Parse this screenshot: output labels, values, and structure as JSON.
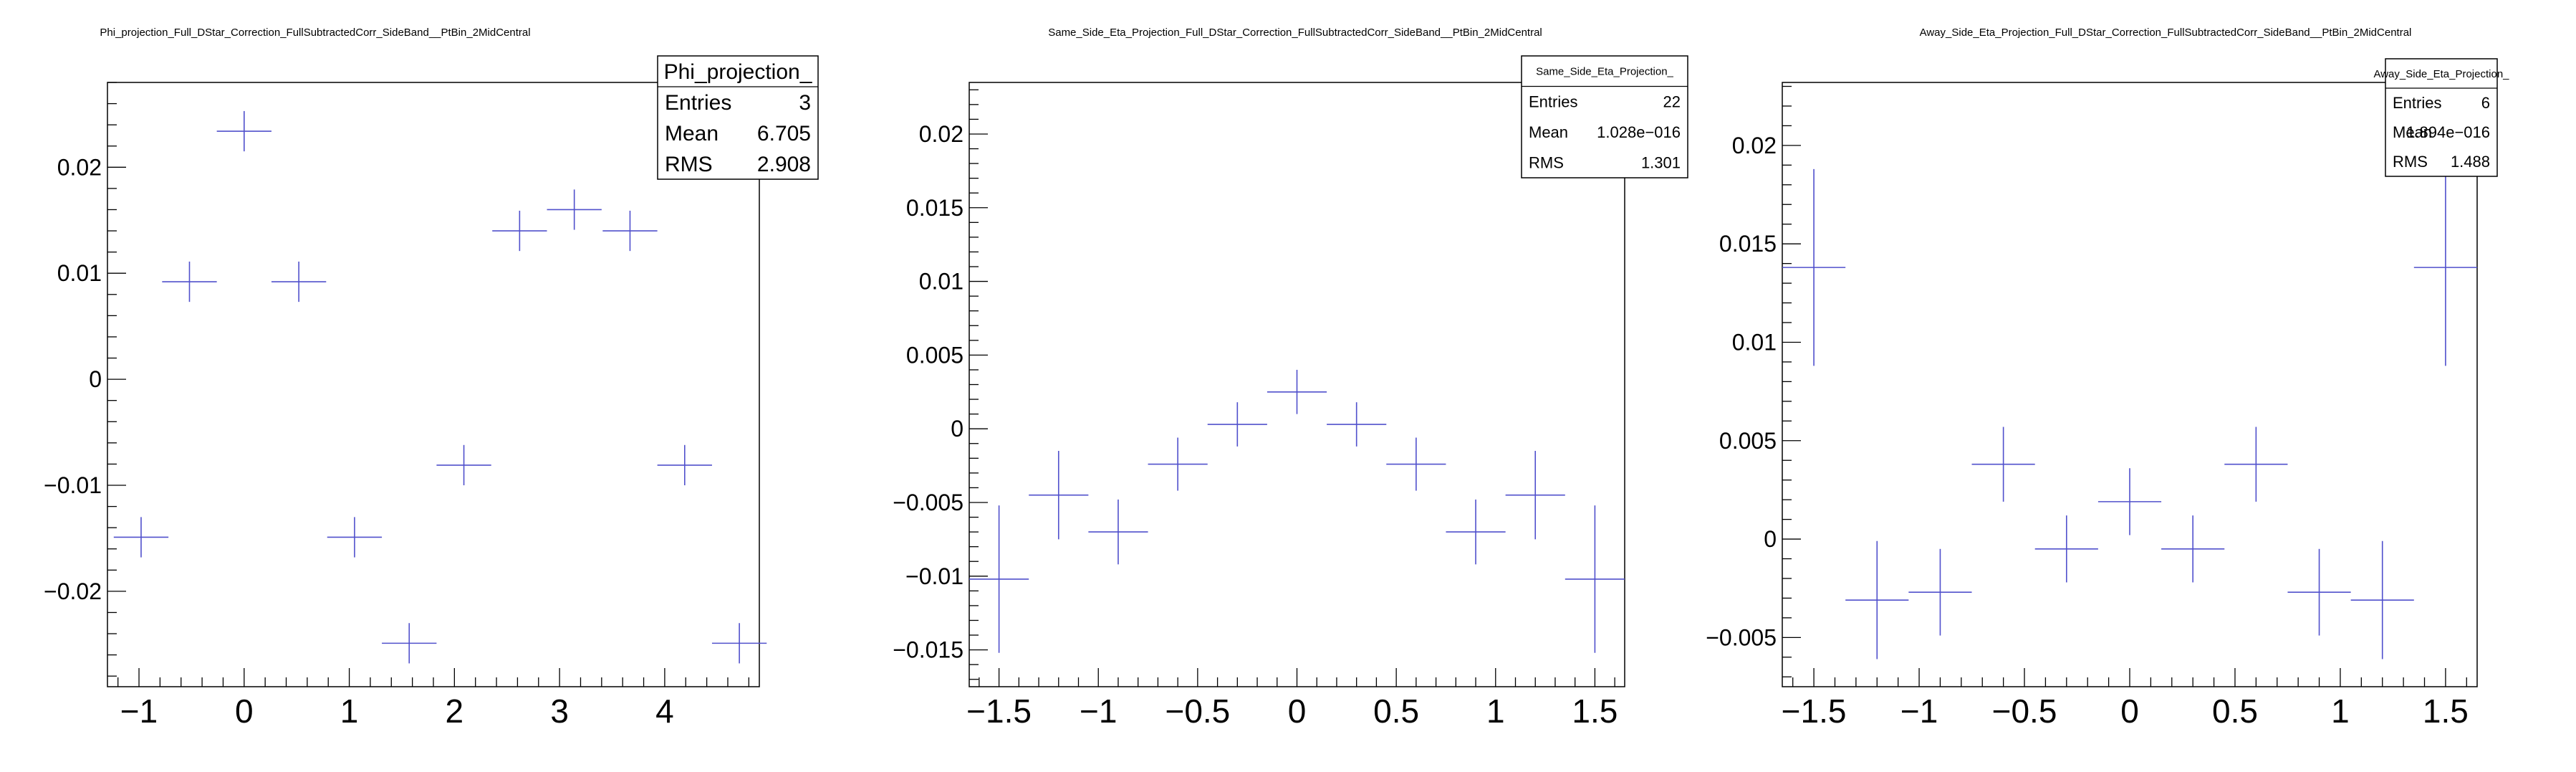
{
  "chart_data": [
    {
      "type": "scatter",
      "title": "Phi_projection_Full_DStar_Correction_FullSubtractedCorr_SideBand__PtBin_2MidCentral",
      "xlabel": "",
      "ylabel": "",
      "xlim": [
        -1.3,
        4.9
      ],
      "ylim": [
        -0.029,
        0.028
      ],
      "xticks": [
        -1,
        0,
        1,
        2,
        3,
        4
      ],
      "yticks": [
        -0.02,
        -0.01,
        0,
        0.01,
        0.02
      ],
      "yticklabels": [
        "−0.02",
        "−0.01",
        "0",
        "0.01",
        "0.02"
      ],
      "xticklabels": [
        "−1",
        "0",
        "1",
        "2",
        "3",
        "4"
      ],
      "marker_color": "#5050cc",
      "series": [
        {
          "points": [
            {
              "x": -0.98,
              "y": -0.0149,
              "xerr": 0.26,
              "yerr": 0.0019
            },
            {
              "x": -0.52,
              "y": 0.0092,
              "xerr": 0.26,
              "yerr": 0.0019
            },
            {
              "x": 0.0,
              "y": 0.0234,
              "xerr": 0.26,
              "yerr": 0.0019
            },
            {
              "x": 0.52,
              "y": 0.0092,
              "xerr": 0.26,
              "yerr": 0.0019
            },
            {
              "x": 1.05,
              "y": -0.0149,
              "xerr": 0.26,
              "yerr": 0.0019
            },
            {
              "x": 1.57,
              "y": -0.0249,
              "xerr": 0.26,
              "yerr": 0.0019
            },
            {
              "x": 2.09,
              "y": -0.0081,
              "xerr": 0.26,
              "yerr": 0.0019
            },
            {
              "x": 2.62,
              "y": 0.014,
              "xerr": 0.26,
              "yerr": 0.0019
            },
            {
              "x": 3.14,
              "y": 0.016,
              "xerr": 0.26,
              "yerr": 0.0019
            },
            {
              "x": 3.67,
              "y": 0.014,
              "xerr": 0.26,
              "yerr": 0.0019
            },
            {
              "x": 4.19,
              "y": -0.0081,
              "xerr": 0.26,
              "yerr": 0.0019
            },
            {
              "x": 4.71,
              "y": -0.0249,
              "xerr": 0.26,
              "yerr": 0.0019
            }
          ]
        }
      ],
      "stats": {
        "name": "Phi_projection_",
        "rows": [
          [
            "Entries",
            "3"
          ],
          [
            "Mean",
            "6.705"
          ],
          [
            "RMS",
            "2.908"
          ]
        ]
      }
    },
    {
      "type": "scatter",
      "title": "Same_Side_Eta_Projection_Full_DStar_Correction_FullSubtractedCorr_SideBand__PtBin_2MidCentral",
      "xlabel": "",
      "ylabel": "",
      "xlim": [
        -1.65,
        1.65
      ],
      "ylim": [
        -0.0175,
        0.0235
      ],
      "xticks": [
        -1.5,
        -1,
        -0.5,
        0,
        0.5,
        1,
        1.5
      ],
      "xticklabels": [
        "−1.5",
        "−1",
        "−0.5",
        "0",
        "0.5",
        "1",
        "1.5"
      ],
      "yticks": [
        -0.015,
        -0.01,
        -0.005,
        0,
        0.005,
        0.01,
        0.015,
        0.02
      ],
      "yticklabels": [
        "−0.015",
        "−0.01",
        "−0.005",
        "0",
        "0.005",
        "0.01",
        "0.015",
        "0.02"
      ],
      "marker_color": "#5050cc",
      "series": [
        {
          "points": [
            {
              "x": -1.5,
              "y": -0.0102,
              "xerr": 0.15,
              "yerr": 0.005
            },
            {
              "x": -1.2,
              "y": -0.0045,
              "xerr": 0.15,
              "yerr": 0.003
            },
            {
              "x": -0.9,
              "y": -0.007,
              "xerr": 0.15,
              "yerr": 0.0022
            },
            {
              "x": -0.6,
              "y": -0.0024,
              "xerr": 0.15,
              "yerr": 0.0018
            },
            {
              "x": -0.3,
              "y": 0.0003,
              "xerr": 0.15,
              "yerr": 0.0015
            },
            {
              "x": 0.0,
              "y": 0.0025,
              "xerr": 0.15,
              "yerr": 0.0015
            },
            {
              "x": 0.3,
              "y": 0.0003,
              "xerr": 0.15,
              "yerr": 0.0015
            },
            {
              "x": 0.6,
              "y": -0.0024,
              "xerr": 0.15,
              "yerr": 0.0018
            },
            {
              "x": 0.9,
              "y": -0.007,
              "xerr": 0.15,
              "yerr": 0.0022
            },
            {
              "x": 1.2,
              "y": -0.0045,
              "xerr": 0.15,
              "yerr": 0.003
            },
            {
              "x": 1.5,
              "y": -0.0102,
              "xerr": 0.15,
              "yerr": 0.005
            }
          ]
        }
      ],
      "stats": {
        "name": "Same_Side_Eta_Projection_",
        "rows": [
          [
            "Entries",
            "22"
          ],
          [
            "Mean",
            "1.028e−016"
          ],
          [
            "RMS",
            "1.301"
          ]
        ]
      }
    },
    {
      "type": "scatter",
      "title": "Away_Side_Eta_Projection_Full_DStar_Correction_FullSubtractedCorr_SideBand__PtBin_2MidCentral",
      "xlabel": "",
      "ylabel": "",
      "xlim": [
        -1.65,
        1.65
      ],
      "ylim": [
        -0.0075,
        0.0232
      ],
      "xticks": [
        -1.5,
        -1,
        -0.5,
        0,
        0.5,
        1,
        1.5
      ],
      "xticklabels": [
        "−1.5",
        "−1",
        "−0.5",
        "0",
        "0.5",
        "1",
        "1.5"
      ],
      "yticks": [
        -0.005,
        0,
        0.005,
        0.01,
        0.015,
        0.02
      ],
      "yticklabels": [
        "−0.005",
        "0",
        "0.005",
        "0.01",
        "0.015",
        "0.02"
      ],
      "marker_color": "#5050cc",
      "series": [
        {
          "points": [
            {
              "x": -1.5,
              "y": 0.0138,
              "xerr": 0.15,
              "yerr": 0.005
            },
            {
              "x": -1.2,
              "y": -0.0031,
              "xerr": 0.15,
              "yerr": 0.003
            },
            {
              "x": -0.9,
              "y": -0.0027,
              "xerr": 0.15,
              "yerr": 0.0022
            },
            {
              "x": -0.6,
              "y": 0.0038,
              "xerr": 0.15,
              "yerr": 0.0019
            },
            {
              "x": -0.3,
              "y": -0.0005,
              "xerr": 0.15,
              "yerr": 0.0017
            },
            {
              "x": 0.0,
              "y": 0.0019,
              "xerr": 0.15,
              "yerr": 0.0017
            },
            {
              "x": 0.3,
              "y": -0.0005,
              "xerr": 0.15,
              "yerr": 0.0017
            },
            {
              "x": 0.6,
              "y": 0.0038,
              "xerr": 0.15,
              "yerr": 0.0019
            },
            {
              "x": 0.9,
              "y": -0.0027,
              "xerr": 0.15,
              "yerr": 0.0022
            },
            {
              "x": 1.2,
              "y": -0.0031,
              "xerr": 0.15,
              "yerr": 0.003
            },
            {
              "x": 1.5,
              "y": 0.0138,
              "xerr": 0.15,
              "yerr": 0.005
            }
          ]
        }
      ],
      "stats": {
        "name": "Away_Side_Eta_Projection_",
        "rows": [
          [
            "Entries",
            "6"
          ],
          [
            "Mean",
            "1.894e−016"
          ],
          [
            "RMS",
            "1.488"
          ]
        ]
      }
    }
  ]
}
